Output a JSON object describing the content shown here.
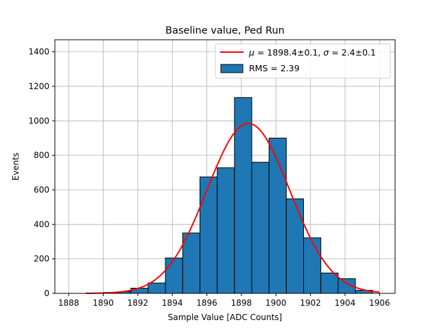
{
  "chart_data": {
    "type": "bar",
    "title": "Baseline value, Ped Run",
    "xlabel": "Sample Value [ADC Counts]",
    "ylabel": "Events",
    "xlim": [
      1887.2,
      1906.9
    ],
    "ylim": [
      0,
      1470
    ],
    "xticks": [
      1888,
      1890,
      1892,
      1894,
      1896,
      1898,
      1900,
      1902,
      1904,
      1906
    ],
    "yticks": [
      0,
      200,
      400,
      600,
      800,
      1000,
      1200,
      1400
    ],
    "grid": true,
    "legend_position": "top-right",
    "histogram": {
      "name": "RMS = 2.39",
      "color": "#1f77b4",
      "edgecolor": "#000000",
      "bin_edges": [
        1889.0,
        1890.0,
        1891.0,
        1891.6,
        1892.6,
        1893.6,
        1894.6,
        1895.6,
        1896.6,
        1897.6,
        1898.6,
        1899.6,
        1900.6,
        1901.6,
        1902.6,
        1903.6,
        1904.6,
        1905.6
      ],
      "counts": [
        2,
        5,
        10,
        30,
        60,
        205,
        350,
        675,
        728,
        1135,
        760,
        900,
        548,
        322,
        118,
        85,
        18
      ]
    },
    "fit": {
      "name": "$\\mu = 1898.4\\pm0.1$, $\\sigma = 2.4\\pm0.1$",
      "color": "#ff0000",
      "type": "gaussian",
      "mu": 1898.4,
      "sigma": 2.4,
      "amplitude": 985,
      "x_range": [
        1889.0,
        1906.0
      ]
    }
  }
}
